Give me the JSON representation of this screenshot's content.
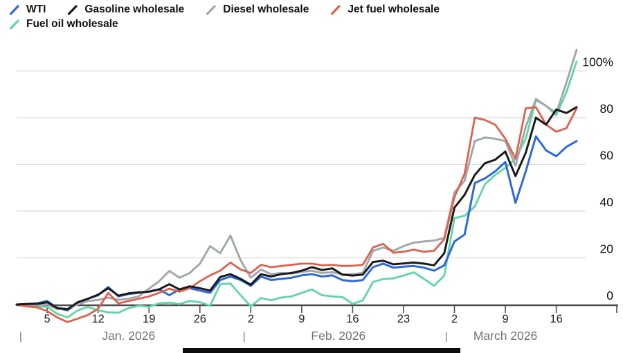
{
  "chart_data": {
    "type": "line",
    "title": "",
    "unit": "% change",
    "grid": true,
    "legend_position": "top-left",
    "ylim": [
      -10,
      112
    ],
    "x_dates": [
      "Dec 31",
      "Jan 1",
      "Jan 2",
      "Jan 5",
      "Jan 6",
      "Jan 7",
      "Jan 8",
      "Jan 9",
      "Jan 12",
      "Jan 13",
      "Jan 14",
      "Jan 15",
      "Jan 16",
      "Jan 19",
      "Jan 20",
      "Jan 21",
      "Jan 22",
      "Jan 23",
      "Jan 26",
      "Jan 27",
      "Jan 28",
      "Jan 29",
      "Jan 30",
      "Feb 2",
      "Feb 3",
      "Feb 4",
      "Feb 5",
      "Feb 6",
      "Feb 9",
      "Feb 10",
      "Feb 11",
      "Feb 12",
      "Feb 13",
      "Feb 16",
      "Feb 17",
      "Feb 18",
      "Feb 19",
      "Feb 20",
      "Feb 23",
      "Feb 24",
      "Feb 25",
      "Feb 26",
      "Feb 27",
      "Mar 2",
      "Mar 3",
      "Mar 4",
      "Mar 5",
      "Mar 6",
      "Mar 9",
      "Mar 10",
      "Mar 11",
      "Mar 12",
      "Mar 13",
      "Mar 16",
      "Mar 17",
      "Mar 18"
    ],
    "series": [
      {
        "name": "WTI",
        "color": "#2c68e0",
        "z": 2,
        "width": 3,
        "values": [
          0,
          0.2,
          0.5,
          1.5,
          -1.5,
          -2.5,
          0.5,
          2.5,
          4,
          7.5,
          3.5,
          4.5,
          5,
          5.5,
          6.5,
          4,
          6.5,
          7,
          6,
          5,
          10.5,
          12,
          10.5,
          8,
          12,
          10.5,
          11,
          11.5,
          12.5,
          13,
          12,
          12.5,
          10.5,
          10,
          10.5,
          16,
          17.5,
          15.8,
          16.2,
          16.5,
          15.8,
          14.5,
          16.8,
          27,
          30,
          52,
          54,
          57,
          61,
          43.5,
          57,
          72,
          66,
          63.5,
          67.5,
          70
        ]
      },
      {
        "name": "Gasoline wholesale",
        "color": "#1a1a1a",
        "z": 5,
        "width": 3,
        "values": [
          0,
          0.2,
          0.3,
          1,
          -1.5,
          -2,
          1,
          2.5,
          4.2,
          7,
          3.8,
          4.8,
          5.2,
          5.5,
          6.5,
          8.7,
          6.5,
          7.8,
          7,
          6,
          11.8,
          13,
          11,
          8.5,
          13,
          12,
          13,
          13.5,
          14.5,
          16,
          14.8,
          15.5,
          12.8,
          12.4,
          12.8,
          18.2,
          18.8,
          17.2,
          17.6,
          18,
          17.5,
          16.8,
          22,
          41.5,
          47,
          55.5,
          60.5,
          62,
          65.5,
          55,
          65,
          80,
          77,
          83.5,
          82,
          84.5
        ]
      },
      {
        "name": "Diesel wholesale",
        "color": "#a1a8ae",
        "z": 3,
        "width": 3,
        "values": [
          0,
          0,
          -0.3,
          0,
          -2,
          -1.8,
          0,
          1.5,
          2,
          3,
          2,
          2.5,
          3.5,
          6.8,
          10,
          14.4,
          11.5,
          13.5,
          17.5,
          25,
          22,
          29.5,
          19,
          11.5,
          15,
          13,
          13.5,
          13.2,
          14,
          14.5,
          13.5,
          13.8,
          12.9,
          13,
          13.5,
          23,
          24.4,
          23,
          25,
          26.5,
          27,
          27.4,
          28.5,
          48,
          53,
          70,
          71.5,
          71,
          70,
          59.5,
          76,
          88,
          85,
          82,
          95,
          109
        ]
      },
      {
        "name": "Jet fuel wholesale",
        "color": "#e0604a",
        "z": 4,
        "width": 2.8,
        "values": [
          0,
          -0.8,
          -1.2,
          -2.8,
          -5.5,
          -7.5,
          -6,
          -4.5,
          -1.8,
          5,
          0.5,
          1.5,
          2.5,
          3.5,
          5,
          6.8,
          5.5,
          7,
          10,
          12.5,
          14.5,
          18,
          15,
          13.5,
          17,
          16,
          16.5,
          17,
          17.5,
          17.5,
          16.8,
          17,
          16.5,
          16.6,
          17,
          24.4,
          26,
          22.2,
          22.6,
          23.5,
          22.6,
          23,
          28,
          46,
          56,
          80,
          79,
          77,
          71,
          62.5,
          84,
          84.5,
          77,
          74,
          75.5,
          84
        ]
      },
      {
        "name": "Fuel oil wholesale",
        "color": "#5ed6a4",
        "z": 1,
        "width": 2.8,
        "values": [
          0,
          -0.3,
          -0.8,
          -1,
          -4,
          -5.5,
          -2.5,
          -1,
          -2.5,
          -3.3,
          -3.5,
          -1.5,
          -0.5,
          -1,
          0.5,
          0.8,
          0.2,
          1.5,
          1,
          -0.5,
          8.7,
          9,
          4,
          -0.8,
          2.8,
          1.8,
          3,
          3.5,
          5,
          6.5,
          4,
          3.5,
          3.2,
          0.3,
          1.8,
          9.7,
          10.9,
          11.2,
          12.4,
          13.8,
          11,
          8,
          12.4,
          37,
          38,
          42,
          51.5,
          55.5,
          58.5,
          62.5,
          71,
          87.5,
          85,
          81,
          91,
          104
        ]
      }
    ],
    "y_ticks": [
      {
        "value": 0,
        "label": "0"
      },
      {
        "value": 20,
        "label": "20"
      },
      {
        "value": 40,
        "label": "40"
      },
      {
        "value": 60,
        "label": "60"
      },
      {
        "value": 80,
        "label": "80"
      },
      {
        "value": 100,
        "label": "100%"
      }
    ],
    "x_ticks": [
      {
        "label": "5",
        "index": 3
      },
      {
        "label": "12",
        "index": 8
      },
      {
        "label": "19",
        "index": 13
      },
      {
        "label": "26",
        "index": 18
      },
      {
        "label": "2",
        "index": 23
      },
      {
        "label": "9",
        "index": 28
      },
      {
        "label": "16",
        "index": 33
      },
      {
        "label": "23",
        "index": 38
      },
      {
        "label": "2",
        "index": 43
      },
      {
        "label": "9",
        "index": 48
      },
      {
        "label": "16",
        "index": 53
      }
    ],
    "months": [
      {
        "label": "Jan. 2026",
        "separator_index": 0.4,
        "center_index": 11
      },
      {
        "label": "Feb. 2026",
        "separator_index": 22.35,
        "center_index": 31.6
      },
      {
        "label": "March 2026",
        "separator_index": 42.2,
        "center_index": 48
      }
    ]
  },
  "legend": {
    "rows": [
      [
        0,
        1,
        2,
        3
      ],
      [
        4
      ]
    ],
    "separator_glyph": "|"
  },
  "colors": {
    "background": "#ffffff",
    "gridline": "#d9d9d9",
    "axis": "#4d4d4d",
    "tick_label": "#1f1f1f",
    "month_label": "#737373",
    "y_label": "#111111"
  }
}
